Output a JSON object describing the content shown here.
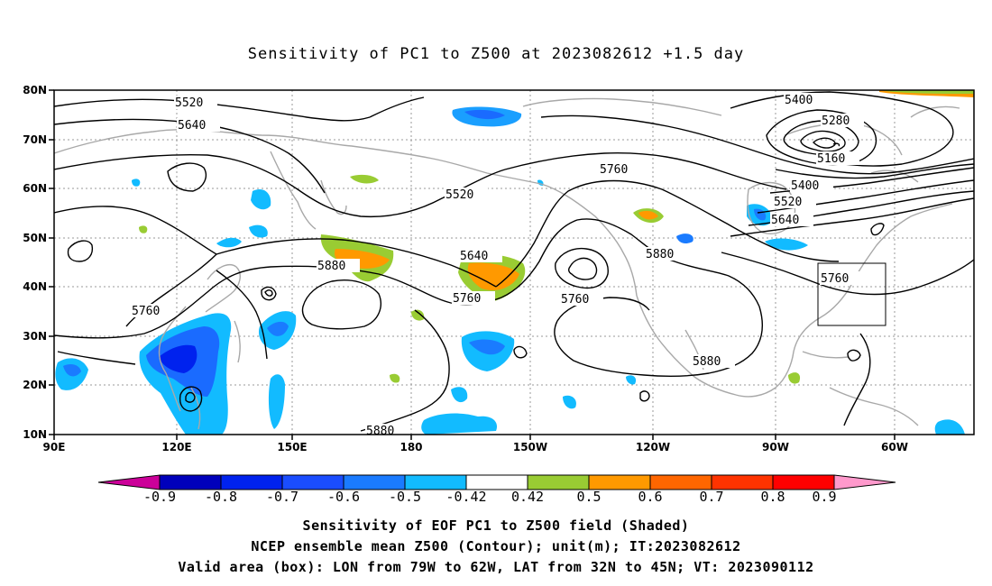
{
  "title": "Sensitivity of PC1 to Z500 at 2023082612 +1.5 day",
  "lat_labels": [
    "80N",
    "70N",
    "60N",
    "50N",
    "40N",
    "30N",
    "20N",
    "10N"
  ],
  "lon_labels": [
    "90E",
    "120E",
    "150E",
    "180",
    "150W",
    "120W",
    "90W",
    "60W"
  ],
  "contour_labels": [
    "5520",
    "5640",
    "5400",
    "5280",
    "5160",
    "5760",
    "5520",
    "5400",
    "5520",
    "5640",
    "5880",
    "5640",
    "5760",
    "5760",
    "5880",
    "5760",
    "5760",
    "5880",
    "5880"
  ],
  "colorbar": {
    "labels": [
      "-0.9",
      "-0.8",
      "-0.7",
      "-0.6",
      "-0.5",
      "-0.42",
      "0.42",
      "0.5",
      "0.6",
      "0.7",
      "0.8",
      "0.9"
    ],
    "colors": [
      "#cc0099",
      "#0000bb",
      "#0022ee",
      "#1a4dff",
      "#1a7bff",
      "#12bbff",
      "#ffffff",
      "#99cc33",
      "#ff9900",
      "#ff6600",
      "#ff3300",
      "#ff0000",
      "#ff99cc"
    ]
  },
  "captions": [
    "Sensitivity of EOF PC1 to Z500 field (Shaded)",
    "NCEP ensemble mean Z500 (Contour); unit(m); IT:2023082612",
    "Valid area (box): LON from 79W to 62W, LAT from 32N to 45N; VT: 2023090112"
  ]
}
